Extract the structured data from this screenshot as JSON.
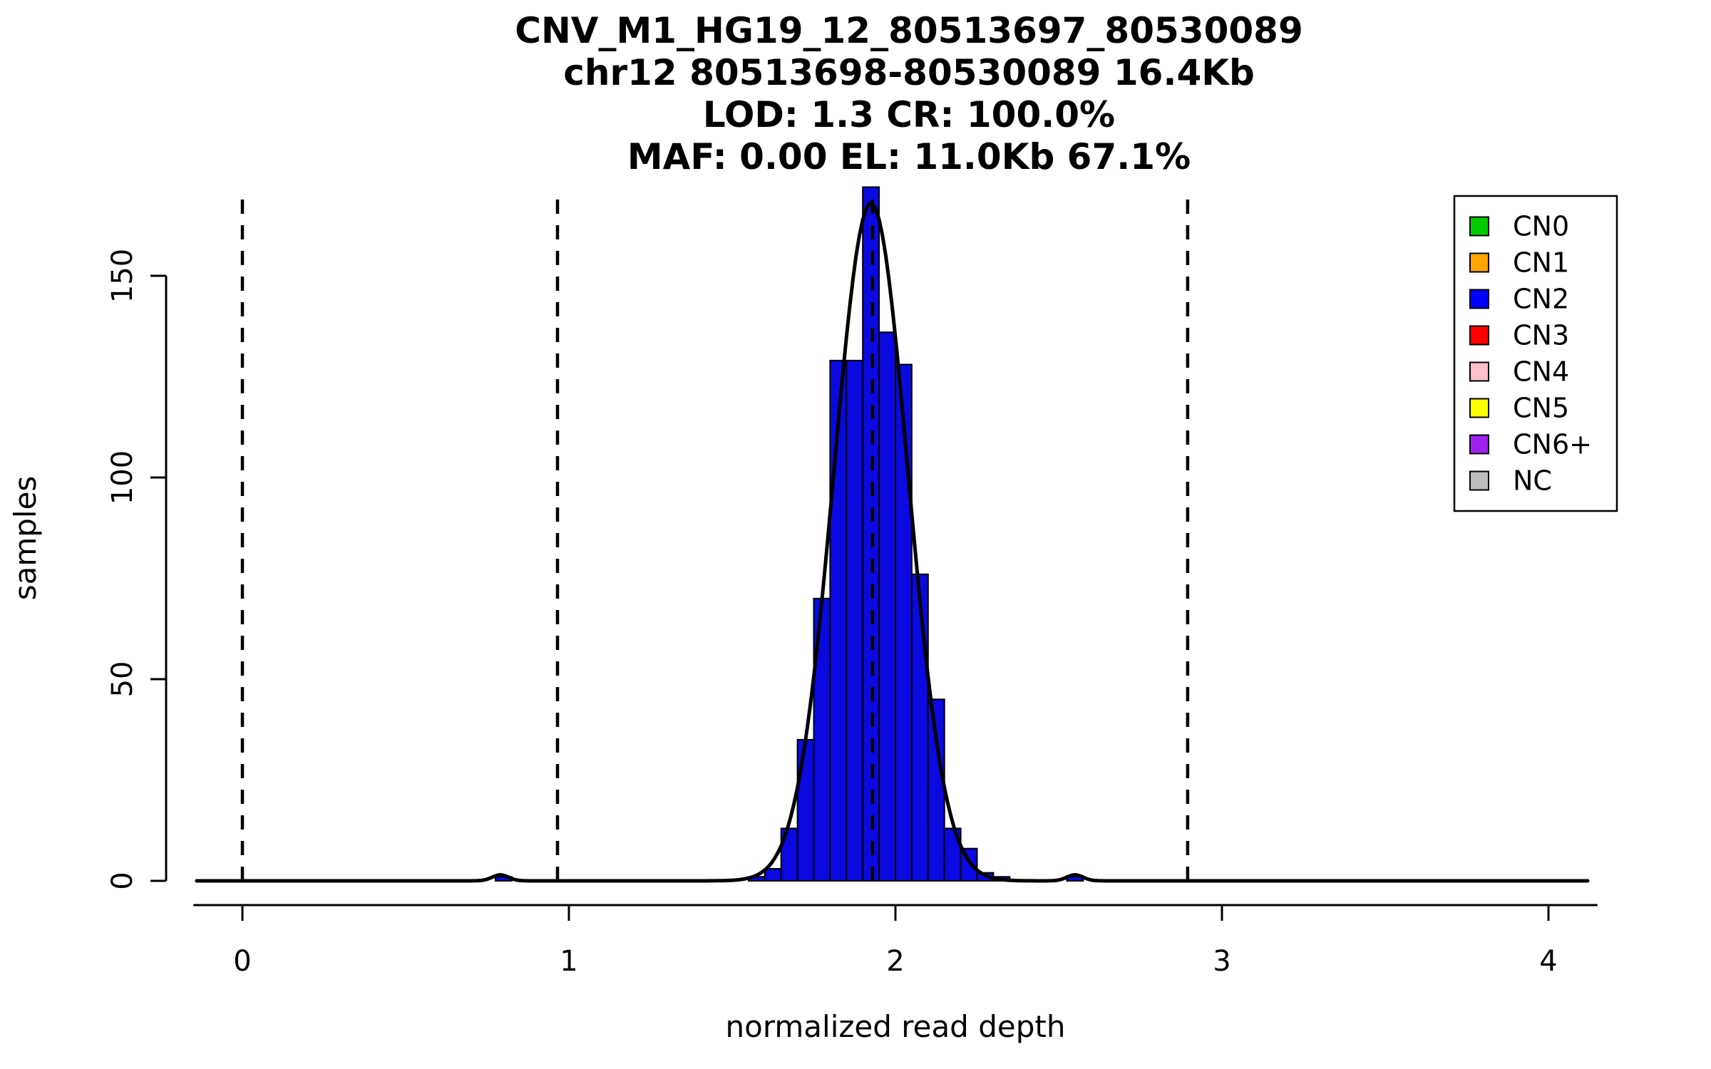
{
  "figure": {
    "background": "#FFFFFF"
  },
  "chart_data": {
    "type": "bar",
    "subtype": "histogram-with-gaussian-fit",
    "title_lines": [
      "CNV_M1_HG19_12_80513697_80530089",
      "chr12 80513698-80530089 16.4Kb",
      "LOD: 1.3 CR: 100.0%",
      "MAF: 0.00 EL: 11.0Kb 67.1%"
    ],
    "xlabel": "normalized read depth",
    "ylabel": "samples",
    "xlim": [
      -0.15,
      4.15
    ],
    "ylim": [
      0,
      172
    ],
    "xticks": [
      0,
      1,
      2,
      3,
      4
    ],
    "yticks": [
      0,
      50,
      100,
      150
    ],
    "grid": false,
    "bin_width": 0.05,
    "bar_color": "#0909E0",
    "bar_border_color": "#000000",
    "bars": [
      {
        "x": 0.775,
        "count": 1
      },
      {
        "x": 1.55,
        "count": 1
      },
      {
        "x": 1.6,
        "count": 3
      },
      {
        "x": 1.65,
        "count": 13
      },
      {
        "x": 1.7,
        "count": 35
      },
      {
        "x": 1.75,
        "count": 70
      },
      {
        "x": 1.8,
        "count": 129
      },
      {
        "x": 1.85,
        "count": 129
      },
      {
        "x": 1.9,
        "count": 172
      },
      {
        "x": 1.95,
        "count": 136
      },
      {
        "x": 2.0,
        "count": 128
      },
      {
        "x": 2.05,
        "count": 76
      },
      {
        "x": 2.1,
        "count": 45
      },
      {
        "x": 2.15,
        "count": 13
      },
      {
        "x": 2.2,
        "count": 8
      },
      {
        "x": 2.25,
        "count": 2
      },
      {
        "x": 2.3,
        "count": 1
      },
      {
        "x": 2.525,
        "count": 1
      }
    ],
    "dashed_vlines": [
      0,
      0.965,
      1.93,
      2.895
    ],
    "fit_curve": {
      "shape": "gaussian",
      "mean": 1.925,
      "sd": 0.113,
      "peak": 168,
      "color": "#000000"
    },
    "baseline_bumps": [
      {
        "mean": 0.79,
        "sd": 0.025,
        "peak": 1.5
      },
      {
        "mean": 2.55,
        "sd": 0.025,
        "peak": 1.5
      }
    ],
    "legend": {
      "position": "top-right",
      "entries": [
        {
          "label": "CN0",
          "color": "#00CC00"
        },
        {
          "label": "CN1",
          "color": "#FFA500"
        },
        {
          "label": "CN2",
          "color": "#0000FF"
        },
        {
          "label": "CN3",
          "color": "#FF0000"
        },
        {
          "label": "CN4",
          "color": "#FFC0CB"
        },
        {
          "label": "CN5",
          "color": "#FFFF00"
        },
        {
          "label": "CN6+",
          "color": "#A020F0"
        },
        {
          "label": "NC",
          "color": "#BEBEBE"
        }
      ]
    }
  }
}
